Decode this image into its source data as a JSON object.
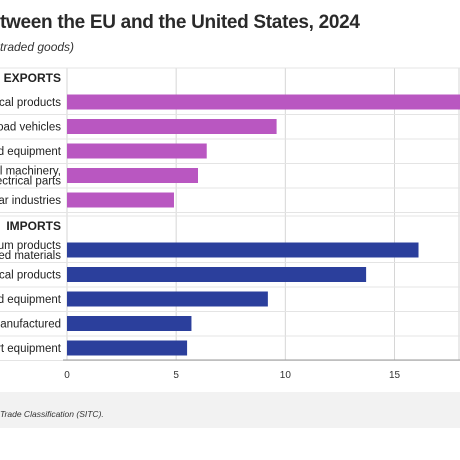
{
  "title": "tween the EU and the United States, 2024",
  "subtitle": "traded goods)",
  "source": "Trade Classification (SITC).",
  "colors": {
    "exports": "#b957c1",
    "imports": "#2b3f9c",
    "grid": "#d6d6d6",
    "axis": "#9a9a9a"
  },
  "chart_data": {
    "type": "bar",
    "orientation": "horizontal",
    "xlim": [
      0,
      18
    ],
    "x_ticks": [
      0,
      5,
      10,
      15
    ],
    "groups": [
      {
        "name": "EXPORTS",
        "series_color": "exports",
        "items": [
          {
            "label": [
              "ical products"
            ],
            "value": 18.3
          },
          {
            "label": [
              "Road vehicles"
            ],
            "value": 9.6
          },
          {
            "label": [
              "d equipment"
            ],
            "value": 6.4
          },
          {
            "label": [
              "al machinery,",
              "ectrical parts"
            ],
            "value": 6.0
          },
          {
            "label": [
              "lar industries"
            ],
            "value": 4.9
          }
        ]
      },
      {
        "name": "IMPORTS",
        "series_color": "imports",
        "items": [
          {
            "label": [
              "eum products",
              "ted materials"
            ],
            "value": 16.1
          },
          {
            "label": [
              "ical products"
            ],
            "value": 13.7
          },
          {
            "label": [
              "d equipment"
            ],
            "value": 9.2
          },
          {
            "label": [
              "anufactured"
            ],
            "value": 5.7
          },
          {
            "label": [
              "rt equipment"
            ],
            "value": 5.5
          }
        ]
      }
    ]
  }
}
